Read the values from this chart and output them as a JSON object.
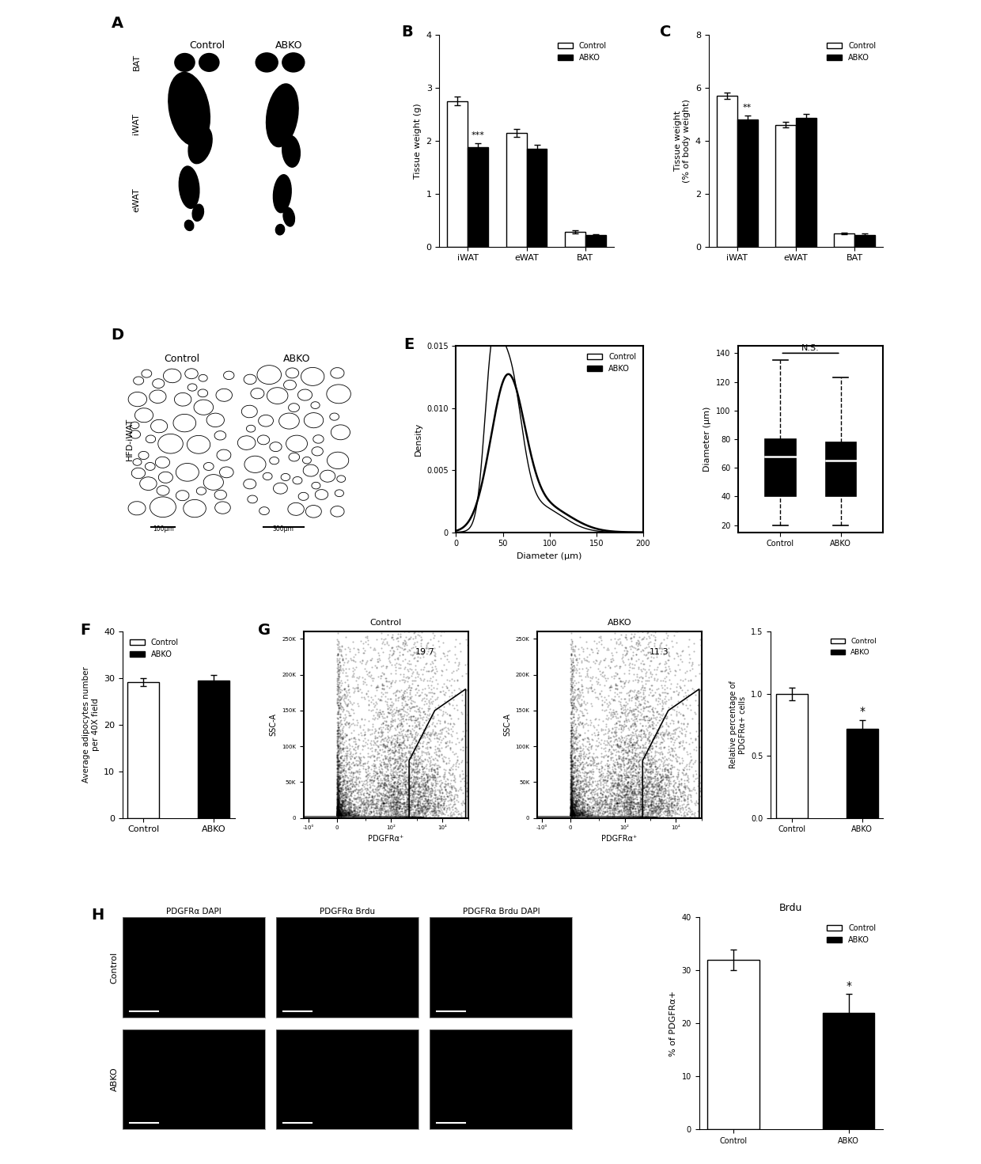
{
  "panel_B": {
    "categories": [
      "iWAT",
      "eWAT",
      "BAT"
    ],
    "control": [
      2.75,
      2.15,
      0.28
    ],
    "abko": [
      1.88,
      1.85,
      0.22
    ],
    "control_err": [
      0.08,
      0.07,
      0.03
    ],
    "abko_err": [
      0.07,
      0.08,
      0.02
    ],
    "ylabel": "Tissue weight (g)",
    "ylim": [
      0,
      4
    ],
    "yticks": [
      0,
      1,
      2,
      3,
      4
    ],
    "sig_markers": [
      "***",
      "",
      ""
    ],
    "sig_on_abko": [
      true,
      false,
      false
    ]
  },
  "panel_C": {
    "categories": [
      "iWAT",
      "eWAT",
      "BAT"
    ],
    "control": [
      5.7,
      4.6,
      0.5
    ],
    "abko": [
      4.8,
      4.85,
      0.45
    ],
    "control_err": [
      0.12,
      0.1,
      0.03
    ],
    "abko_err": [
      0.15,
      0.15,
      0.04
    ],
    "ylabel": "Tissue weight\n(% of body weight)",
    "ylim": [
      0,
      8
    ],
    "yticks": [
      0,
      2,
      4,
      6,
      8
    ],
    "sig_markers": [
      "**",
      "",
      ""
    ],
    "sig_on_abko": [
      true,
      false,
      false
    ]
  },
  "panel_E_box": {
    "control_q1": 40,
    "control_median": 68,
    "control_q3": 80,
    "control_whisker_low": 20,
    "control_whisker_high": 135,
    "abko_q1": 40,
    "abko_median": 65,
    "abko_q3": 78,
    "abko_whisker_low": 20,
    "abko_whisker_high": 123,
    "ylim": [
      15,
      145
    ],
    "yticks": [
      20,
      40,
      60,
      80,
      100,
      120,
      140
    ],
    "ylabel": "Diameter (μm)",
    "ns_text": "N.S."
  },
  "panel_F": {
    "categories": [
      "Control",
      "ABKO"
    ],
    "values": [
      29.2,
      29.5
    ],
    "errors": [
      0.9,
      1.2
    ],
    "ylabel": "Average adipocytes number\nper 40X field",
    "ylim": [
      0,
      40
    ],
    "yticks": [
      0,
      10,
      20,
      30,
      40
    ]
  },
  "panel_G_bar": {
    "values": [
      1.0,
      0.72
    ],
    "errors": [
      0.05,
      0.07
    ],
    "ylabel": "Relative percentage of\nPDGFRα+ cells",
    "ylim": [
      0.0,
      1.5
    ],
    "yticks": [
      0.0,
      0.5,
      1.0,
      1.5
    ]
  },
  "panel_H_bar": {
    "values": [
      32,
      22
    ],
    "errors": [
      2.0,
      3.5
    ],
    "ylabel": "% of PDGFRα+",
    "ylim": [
      0,
      40
    ],
    "yticks": [
      0,
      10,
      20,
      30,
      40
    ],
    "title": "Brdu"
  },
  "colors": {
    "control": "#ffffff",
    "abko": "#000000",
    "edge": "#000000"
  },
  "legend": {
    "control_label": "Control",
    "abko_label": "ABKO"
  }
}
